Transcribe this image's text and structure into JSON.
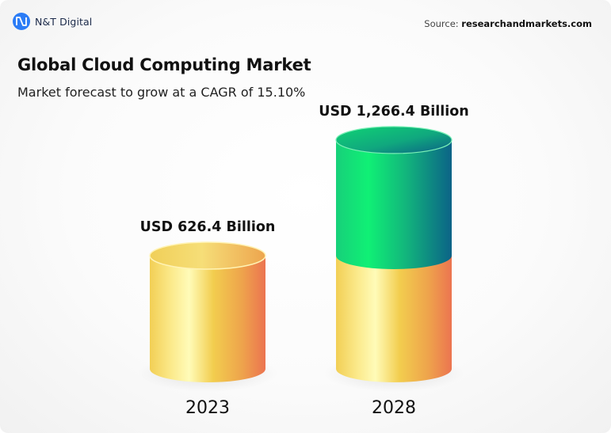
{
  "brand": {
    "name": "N&T Digital",
    "logo_icon": "nt-monogram-icon",
    "logo_color": "#2b7cf6"
  },
  "source": {
    "label": "Source:",
    "value": "researchandmarkets.com"
  },
  "chart_data": {
    "type": "bar",
    "title": "Global Cloud Computing Market",
    "subtitle": "Market forecast to grow at a CAGR of 15.10%",
    "categories": [
      "2023",
      "2028"
    ],
    "values": [
      626.4,
      1266.4
    ],
    "value_labels": [
      "USD 626.4 Billion",
      "USD 1,266.4 Billion"
    ],
    "unit": "USD Billion",
    "style": "3d-cylinder",
    "colors": {
      "base": [
        "#f7dc6a",
        "#fff8b0",
        "#f0c24c",
        "#ee7a4e"
      ],
      "growth": [
        "#0fe870",
        "#13c07a",
        "#0b6a86"
      ]
    }
  }
}
